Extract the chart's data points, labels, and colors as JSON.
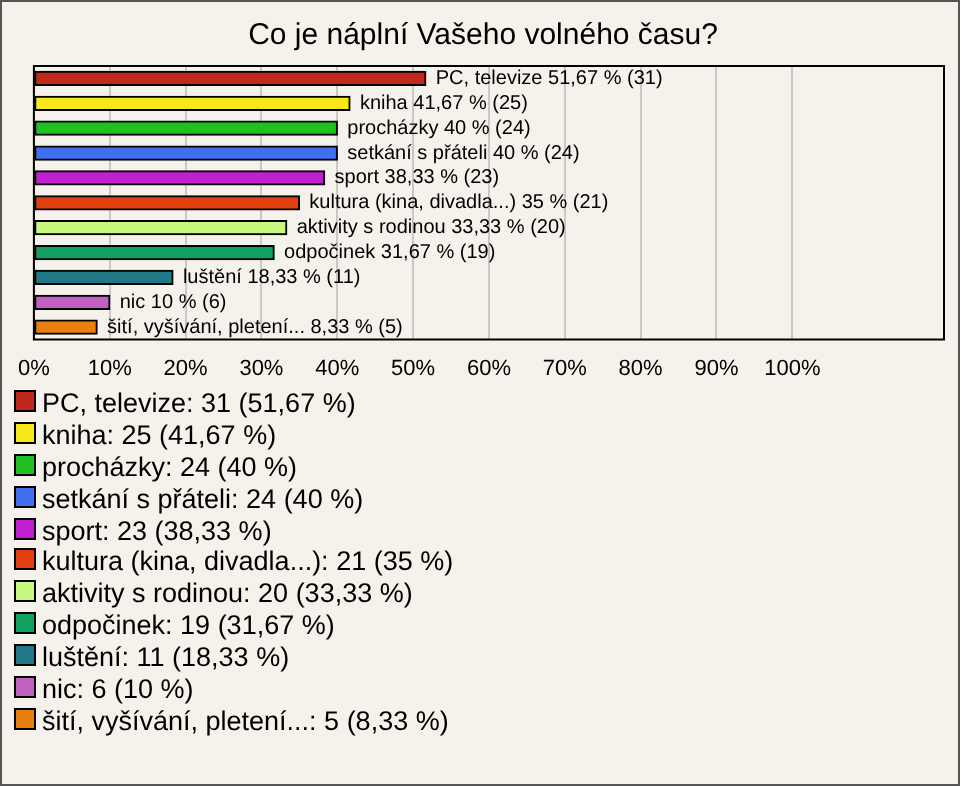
{
  "chart_data": {
    "type": "bar",
    "orientation": "horizontal",
    "title": "Co je náplní Vašeho volného času?",
    "categories": [
      "PC, televize",
      "kniha",
      "procházky",
      "setkání s přáteli",
      "sport",
      "kultura (kina, divadla...)",
      "aktivity s rodinou",
      "odpočinek",
      "luštění",
      "nic",
      "šití, vyšívání, pletení..."
    ],
    "values": [
      51.67,
      41.67,
      40,
      40,
      38.33,
      35,
      33.33,
      31.67,
      18.33,
      10,
      8.33
    ],
    "value_labels": [
      "51,67 % (31)",
      "41,67 % (25)",
      "40 % (24)",
      "40 % (24)",
      "38,33 % (23)",
      "35 % (21)",
      "33,33 % (20)",
      "31,67 % (19)",
      "18,33 % (11)",
      "10 % (6)",
      "8,33 % (5)"
    ],
    "colors": [
      "#c0281c",
      "#f8e81c",
      "#20c020",
      "#4070f0",
      "#c020d0",
      "#e04010",
      "#c8f880",
      "#10a060",
      "#207888",
      "#c060c0",
      "#e88010"
    ],
    "xlim": [
      0,
      120
    ],
    "xticks": [
      {
        "value": 0,
        "label": "0%"
      },
      {
        "value": 10,
        "label": "10%"
      },
      {
        "value": 20,
        "label": "20%"
      },
      {
        "value": 30,
        "label": "30%"
      },
      {
        "value": 40,
        "label": "40%"
      },
      {
        "value": 50,
        "label": "50%"
      },
      {
        "value": 60,
        "label": "60%"
      },
      {
        "value": 70,
        "label": "70%"
      },
      {
        "value": 80,
        "label": "80%"
      },
      {
        "value": 90,
        "label": "90%"
      },
      {
        "value": 100,
        "label": "100%"
      }
    ],
    "grid": "x",
    "annotations": [
      "PC, televize: 31 (51,67 %)",
      "kniha: 25 (41,67 %)",
      "procházky: 24 (40 %)",
      "setkání s přáteli: 24 (40 %)",
      "sport: 23 (38,33 %)",
      "kultura (kina, divadla...): 21 (35 %)",
      "aktivity s rodinou: 20 (33,33 %)",
      "odpočinek: 19 (31,67 %)",
      "luštění: 11 (18,33 %)",
      "nic: 6 (10 %)",
      "šití, vyšívání, pletení...: 5 (8,33 %)"
    ]
  }
}
